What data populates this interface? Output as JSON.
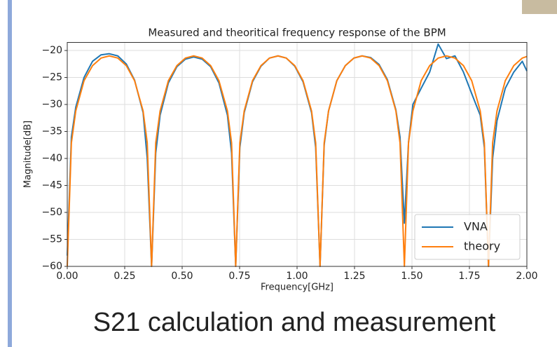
{
  "chart_data": {
    "type": "line",
    "title": "Measured and theoritical frequency response of the BPM",
    "x_label": "Frequency[GHz]",
    "y_label": "Magnitude[dB]",
    "x": [
      0,
      0.018,
      0.037,
      0.073,
      0.11,
      0.147,
      0.183,
      0.22,
      0.257,
      0.293,
      0.33,
      0.348,
      0.367,
      0.385,
      0.404,
      0.44,
      0.477,
      0.514,
      0.55,
      0.587,
      0.624,
      0.66,
      0.697,
      0.715,
      0.733,
      0.751,
      0.77,
      0.806,
      0.843,
      0.88,
      0.917,
      0.953,
      0.99,
      1.026,
      1.063,
      1.081,
      1.1,
      1.118,
      1.137,
      1.173,
      1.21,
      1.247,
      1.283,
      1.32,
      1.357,
      1.393,
      1.43,
      1.448,
      1.467,
      1.485,
      1.504,
      1.54,
      1.577,
      1.614,
      1.65,
      1.687,
      1.724,
      1.76,
      1.797,
      1.815,
      1.833,
      1.851,
      1.87,
      1.906,
      1.943,
      1.98,
      2.0
    ],
    "series": [
      {
        "name": "VNA",
        "color": "#1f77b4",
        "values": [
          -58,
          -36,
          -30.5,
          -25,
          -22,
          -20.8,
          -20.6,
          -21,
          -22.5,
          -25.5,
          -31.5,
          -40,
          -60,
          -39,
          -32,
          -26,
          -23,
          -21.6,
          -21.2,
          -21.6,
          -23,
          -26,
          -32,
          -39,
          -60,
          -38,
          -31.5,
          -25.8,
          -22.9,
          -21.4,
          -21,
          -21.4,
          -22.9,
          -25.8,
          -31.5,
          -38,
          -60,
          -37.5,
          -31.2,
          -25.6,
          -22.8,
          -21.4,
          -21,
          -21.3,
          -22.6,
          -25.4,
          -31,
          -36,
          -52,
          -37,
          -30,
          -27,
          -24,
          -18.8,
          -21.5,
          -21,
          -24,
          -28,
          -32,
          -38,
          -60,
          -40,
          -33,
          -27,
          -24,
          -22,
          -23.8
        ]
      },
      {
        "name": "theory",
        "color": "#ff7f0e",
        "values": [
          -60,
          -37.1,
          -31.2,
          -25.6,
          -22.8,
          -21.4,
          -21,
          -21.4,
          -22.8,
          -25.6,
          -31.2,
          -37.1,
          -60,
          -37.1,
          -31.2,
          -25.6,
          -22.8,
          -21.4,
          -21,
          -21.4,
          -22.8,
          -25.6,
          -31.2,
          -37.1,
          -60,
          -37.1,
          -31.2,
          -25.6,
          -22.8,
          -21.4,
          -21,
          -21.4,
          -22.8,
          -25.6,
          -31.2,
          -37.1,
          -60,
          -37.1,
          -31.2,
          -25.6,
          -22.8,
          -21.4,
          -21,
          -21.4,
          -22.8,
          -25.6,
          -31.2,
          -37.1,
          -60,
          -37.1,
          -31.2,
          -25.6,
          -22.8,
          -21.4,
          -21,
          -21.4,
          -22.8,
          -25.6,
          -31.2,
          -37.1,
          -60,
          -37.1,
          -31.2,
          -25.6,
          -22.8,
          -21.4,
          -21.1
        ]
      }
    ],
    "xlim": [
      0,
      2
    ],
    "ylim": [
      -60,
      -18.5
    ],
    "xticks": [
      {
        "value": 0,
        "label": "0.00"
      },
      {
        "value": 0.25,
        "label": "0.25"
      },
      {
        "value": 0.5,
        "label": "0.50"
      },
      {
        "value": 0.75,
        "label": "0.75"
      },
      {
        "value": 1,
        "label": "1.00"
      },
      {
        "value": 1.25,
        "label": "1.25"
      },
      {
        "value": 1.5,
        "label": "1.50"
      },
      {
        "value": 1.75,
        "label": "1.75"
      },
      {
        "value": 2,
        "label": "2.00"
      }
    ],
    "yticks": [
      {
        "value": -20,
        "label": "−20"
      },
      {
        "value": -25,
        "label": "−25"
      },
      {
        "value": -30,
        "label": "−30"
      },
      {
        "value": -35,
        "label": "−35"
      },
      {
        "value": -40,
        "label": "−40"
      },
      {
        "value": -45,
        "label": "−45"
      },
      {
        "value": -50,
        "label": "−50"
      },
      {
        "value": -55,
        "label": "−55"
      },
      {
        "value": -60,
        "label": "−60"
      }
    ],
    "grid": true,
    "legend": "lower right"
  },
  "caption": "S21 calculation and measurement"
}
